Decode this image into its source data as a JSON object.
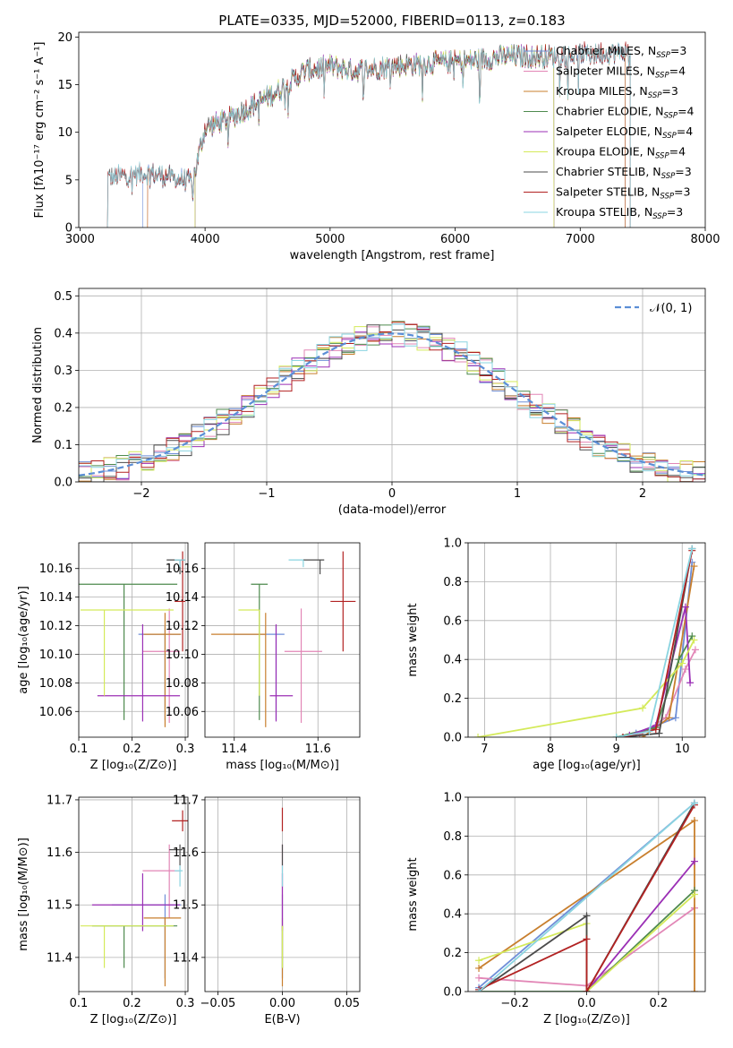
{
  "figure_title": "PLATE=0335, MJD=52000, FIBERID=0113, z=0.183",
  "colors": {
    "Chabrier MILES": "#6f8fd8",
    "Salpeter MILES": "#e286b6",
    "Kroupa MILES": "#c87f2e",
    "Chabrier ELODIE": "#4e8a4e",
    "Salpeter ELODIE": "#9b2fb5",
    "Kroupa ELODIE": "#d4ea5a",
    "Chabrier STELIB": "#4b4b4b",
    "Salpeter STELIB": "#b22222",
    "Kroupa STELIB": "#8ad4e0"
  },
  "chart_data": [
    {
      "id": "spectrum",
      "type": "line",
      "xlabel": "wavelength [Angstrom, rest frame]",
      "ylabel": "Flux [fλ10⁻¹⁷ erg cm⁻² s⁻¹ A⁻¹]",
      "xlim": [
        2990,
        8000
      ],
      "ylim": [
        0,
        20.5
      ],
      "xticks": [
        3000,
        4000,
        5000,
        6000,
        7000,
        8000
      ],
      "yticks": [
        0,
        5,
        10,
        15,
        20
      ],
      "legend_placement": "upper right",
      "legend": [
        {
          "label": "Chabrier MILES, N",
          "sub": "SSP",
          "suffix": "=3",
          "color": "#6f8fd8"
        },
        {
          "label": "Salpeter MILES, N",
          "sub": "SSP",
          "suffix": "=4",
          "color": "#e286b6"
        },
        {
          "label": "Kroupa MILES, N",
          "sub": "SSP",
          "suffix": "=3",
          "color": "#c87f2e"
        },
        {
          "label": "Chabrier ELODIE, N",
          "sub": "SSP",
          "suffix": "=4",
          "color": "#4e8a4e"
        },
        {
          "label": "Salpeter ELODIE, N",
          "sub": "SSP",
          "suffix": "=4",
          "color": "#9b2fb5"
        },
        {
          "label": "Kroupa ELODIE, N",
          "sub": "SSP",
          "suffix": "=4",
          "color": "#d4ea5a"
        },
        {
          "label": "Chabrier STELIB, N",
          "sub": "SSP",
          "suffix": "=3",
          "color": "#4b4b4b"
        },
        {
          "label": "Salpeter STELIB, N",
          "sub": "SSP",
          "suffix": "=3",
          "color": "#b22222"
        },
        {
          "label": "Kroupa STELIB, N",
          "sub": "SSP",
          "suffix": "=3",
          "color": "#8ad4e0"
        }
      ],
      "series_start_wavelength": [
        3500,
        3540,
        3540,
        3920,
        3920,
        3920,
        3220,
        3220,
        3220
      ],
      "series_end_wavelength": [
        7360,
        7360,
        7360,
        6790,
        6790,
        6790,
        7400,
        7400,
        7400
      ],
      "continuum_points": [
        [
          3220,
          5.2
        ],
        [
          3500,
          5.8
        ],
        [
          3700,
          5.4
        ],
        [
          3900,
          4.8
        ],
        [
          4000,
          10.5
        ],
        [
          4200,
          11.5
        ],
        [
          4400,
          13.0
        ],
        [
          4600,
          14.5
        ],
        [
          4800,
          16.5
        ],
        [
          5000,
          17.0
        ],
        [
          5200,
          16.5
        ],
        [
          5500,
          17.0
        ],
        [
          5800,
          17.3
        ],
        [
          6100,
          17.5
        ],
        [
          6400,
          18.0
        ],
        [
          6700,
          18.0
        ],
        [
          7000,
          18.2
        ],
        [
          7400,
          18.5
        ]
      ]
    },
    {
      "id": "residuals",
      "type": "step",
      "xlabel": "(data-model)/error",
      "ylabel": "Normed distribution",
      "xlim": [
        -2.5,
        2.5
      ],
      "ylim": [
        0,
        0.52
      ],
      "xticks": [
        -2,
        -1,
        0,
        1,
        2
      ],
      "yticks": [
        0.0,
        0.1,
        0.2,
        0.3,
        0.4,
        0.5
      ],
      "grid": true,
      "legend": [
        {
          "label": "𝒩(0, 1)",
          "style": "dashed",
          "color": "#5b8ed6"
        }
      ],
      "bin_edges_start": -2.5,
      "bin_width": 0.1,
      "reference_curve": "normal(0,1)"
    },
    {
      "id": "age_vs_Z",
      "type": "errorbar",
      "xlabel": "Z [log₁₀(Z/Z⊙)]",
      "ylabel": "age  [log₁₀(age/yr)]",
      "xlim": [
        0.1,
        0.305
      ],
      "ylim": [
        10.042,
        10.178
      ],
      "xticks": [
        0.1,
        0.2,
        0.3
      ],
      "yticks": [
        10.06,
        10.08,
        10.1,
        10.12,
        10.14,
        10.16
      ],
      "grid": true,
      "points": [
        {
          "x": 0.262,
          "y": 10.114,
          "xerr": [
            0.05,
            0.03
          ],
          "yerr": [
            0.06,
            0.006
          ],
          "color": "#6f8fd8"
        },
        {
          "x": 0.27,
          "y": 10.102,
          "xerr": [
            0.05,
            0.02
          ],
          "yerr": [
            0.05,
            0.03
          ],
          "color": "#e286b6"
        },
        {
          "x": 0.262,
          "y": 10.114,
          "xerr": [
            0.04,
            0.03
          ],
          "yerr": [
            0.065,
            0.015
          ],
          "color": "#c87f2e"
        },
        {
          "x": 0.185,
          "y": 10.149,
          "xerr": [
            0.085,
            0.1
          ],
          "yerr": [
            0.095,
            0.0
          ],
          "color": "#4e8a4e"
        },
        {
          "x": 0.22,
          "y": 10.071,
          "xerr": [
            0.085,
            0.07
          ],
          "yerr": [
            0.018,
            0.05
          ],
          "color": "#9b2fb5"
        },
        {
          "x": 0.148,
          "y": 10.131,
          "xerr": [
            0.045,
            0.13
          ],
          "yerr": [
            0.06,
            0.0
          ],
          "color": "#d4ea5a"
        },
        {
          "x": 0.29,
          "y": 10.166,
          "xerr": [
            0.025,
            0.01
          ],
          "yerr": [
            0.01,
            0.0
          ],
          "color": "#4b4b4b"
        },
        {
          "x": 0.295,
          "y": 10.137,
          "xerr": [
            0.015,
            0.005
          ],
          "yerr": [
            0.035,
            0.035
          ],
          "color": "#b22222"
        },
        {
          "x": 0.29,
          "y": 10.166,
          "xerr": [
            0.01,
            0.01
          ],
          "yerr": [
            0.005,
            0.0
          ],
          "color": "#8ad4e0"
        }
      ]
    },
    {
      "id": "age_vs_mass",
      "type": "errorbar",
      "xlabel": "mass [log₁₀(M/M⊙)]",
      "ylabel": "",
      "xlim": [
        11.33,
        11.7
      ],
      "ylim": [
        10.042,
        10.178
      ],
      "xticks": [
        11.4,
        11.6
      ],
      "yticks": [
        10.06,
        10.08,
        10.1,
        10.12,
        10.14,
        10.16
      ],
      "grid": true,
      "points": [
        {
          "x": 11.5,
          "y": 10.114,
          "xerr": [
            0.1,
            0.02
          ],
          "yerr": [
            0.06,
            0.006
          ],
          "color": "#6f8fd8"
        },
        {
          "x": 11.56,
          "y": 10.102,
          "xerr": [
            0.04,
            0.05
          ],
          "yerr": [
            0.05,
            0.03
          ],
          "color": "#e286b6"
        },
        {
          "x": 11.475,
          "y": 10.114,
          "xerr": [
            0.13,
            0.0
          ],
          "yerr": [
            0.065,
            0.015
          ],
          "color": "#c87f2e"
        },
        {
          "x": 11.46,
          "y": 10.149,
          "xerr": [
            0.02,
            0.02
          ],
          "yerr": [
            0.095,
            0.0
          ],
          "color": "#4e8a4e"
        },
        {
          "x": 11.5,
          "y": 10.071,
          "xerr": [
            0.015,
            0.04
          ],
          "yerr": [
            0.018,
            0.05
          ],
          "color": "#9b2fb5"
        },
        {
          "x": 11.46,
          "y": 10.131,
          "xerr": [
            0.05,
            0.0
          ],
          "yerr": [
            0.06,
            0.0
          ],
          "color": "#d4ea5a"
        },
        {
          "x": 11.605,
          "y": 10.166,
          "xerr": [
            0.04,
            0.01
          ],
          "yerr": [
            0.01,
            0.0
          ],
          "color": "#4b4b4b"
        },
        {
          "x": 11.66,
          "y": 10.137,
          "xerr": [
            0.03,
            0.03
          ],
          "yerr": [
            0.035,
            0.035
          ],
          "color": "#b22222"
        },
        {
          "x": 11.565,
          "y": 10.166,
          "xerr": [
            0.035,
            0.0
          ],
          "yerr": [
            0.005,
            0.0
          ],
          "color": "#8ad4e0"
        }
      ]
    },
    {
      "id": "mass_weight_vs_age",
      "type": "line",
      "xlabel": "age  [log₁₀(age/yr)]",
      "ylabel": "mass weight",
      "xlim": [
        6.75,
        10.35
      ],
      "ylim": [
        0,
        1.0
      ],
      "xticks": [
        7,
        8,
        9,
        10
      ],
      "yticks": [
        0.0,
        0.2,
        0.4,
        0.6,
        0.8,
        1.0
      ],
      "grid": true,
      "series": [
        {
          "color": "#6f8fd8",
          "x": [
            9.3,
            9.9,
            10.15
          ],
          "y": [
            0.02,
            0.1,
            0.9
          ]
        },
        {
          "color": "#e286b6",
          "x": [
            9.35,
            9.75,
            10.05,
            10.2
          ],
          "y": [
            0.01,
            0.1,
            0.35,
            0.45
          ]
        },
        {
          "color": "#c87f2e",
          "x": [
            9.4,
            9.8,
            10.18
          ],
          "y": [
            0.0,
            0.1,
            0.88
          ]
        },
        {
          "color": "#4e8a4e",
          "x": [
            9.0,
            9.6,
            9.95,
            10.15
          ],
          "y": [
            0.0,
            0.05,
            0.4,
            0.52
          ]
        },
        {
          "color": "#9b2fb5",
          "x": [
            9.2,
            9.6,
            10.05,
            10.12
          ],
          "y": [
            0.01,
            0.06,
            0.67,
            0.28
          ]
        },
        {
          "color": "#d4ea5a",
          "x": [
            6.9,
            9.4,
            10.0,
            10.18
          ],
          "y": [
            0.0,
            0.15,
            0.38,
            0.5
          ]
        },
        {
          "color": "#4b4b4b",
          "x": [
            9.1,
            9.65,
            10.15
          ],
          "y": [
            0.0,
            0.02,
            0.97
          ]
        },
        {
          "color": "#b22222",
          "x": [
            9.1,
            9.6,
            10.15
          ],
          "y": [
            0.0,
            0.04,
            0.96
          ]
        },
        {
          "color": "#8ad4e0",
          "x": [
            9.0,
            9.5,
            10.15
          ],
          "y": [
            0.0,
            0.03,
            0.97
          ]
        }
      ]
    },
    {
      "id": "mass_vs_Z",
      "type": "errorbar",
      "xlabel": "Z [log₁₀(Z/Z⊙)]",
      "ylabel": "mass [log₁₀(M/M⊙)]",
      "xlim": [
        0.1,
        0.305
      ],
      "ylim": [
        11.335,
        11.705
      ],
      "xticks": [
        0.1,
        0.2,
        0.3
      ],
      "yticks": [
        11.4,
        11.5,
        11.6,
        11.7
      ],
      "grid": true,
      "points": [
        {
          "x": 0.262,
          "y": 11.5,
          "xerr": [
            0.1,
            0.03
          ],
          "yerr": [
            0.14,
            0.02
          ],
          "color": "#6f8fd8"
        },
        {
          "x": 0.27,
          "y": 11.565,
          "xerr": [
            0.05,
            0.02
          ],
          "yerr": [
            0.09,
            0.05
          ],
          "color": "#e286b6"
        },
        {
          "x": 0.262,
          "y": 11.475,
          "xerr": [
            0.04,
            0.03
          ],
          "yerr": [
            0.13,
            0.0
          ],
          "color": "#c87f2e"
        },
        {
          "x": 0.185,
          "y": 11.46,
          "xerr": [
            0.06,
            0.1
          ],
          "yerr": [
            0.08,
            0.0
          ],
          "color": "#4e8a4e"
        },
        {
          "x": 0.22,
          "y": 11.5,
          "xerr": [
            0.095,
            0.07
          ],
          "yerr": [
            0.05,
            0.06
          ],
          "color": "#9b2fb5"
        },
        {
          "x": 0.148,
          "y": 11.46,
          "xerr": [
            0.045,
            0.13
          ],
          "yerr": [
            0.08,
            0.0
          ],
          "color": "#d4ea5a"
        },
        {
          "x": 0.29,
          "y": 11.605,
          "xerr": [
            0.02,
            0.005
          ],
          "yerr": [
            0.03,
            0.01
          ],
          "color": "#4b4b4b"
        },
        {
          "x": 0.295,
          "y": 11.66,
          "xerr": [
            0.02,
            0.01
          ],
          "yerr": [
            0.02,
            0.02
          ],
          "color": "#b22222"
        },
        {
          "x": 0.29,
          "y": 11.565,
          "xerr": [
            0.01,
            0.005
          ],
          "yerr": [
            0.03,
            0.01
          ],
          "color": "#8ad4e0"
        }
      ]
    },
    {
      "id": "mass_vs_EBV",
      "type": "errorbar",
      "xlabel": "E(B-V)",
      "ylabel": "",
      "xlim": [
        -0.06,
        0.06
      ],
      "ylim": [
        11.335,
        11.705
      ],
      "xticks": [
        -0.05,
        0.0,
        0.05
      ],
      "yticks": [
        11.4,
        11.5,
        11.6,
        11.7
      ],
      "grid": true,
      "points": [
        {
          "x": 0.0,
          "y": 11.5,
          "xerr": [
            0,
            0
          ],
          "yerr": [
            0.14,
            0.02
          ],
          "color": "#6f8fd8"
        },
        {
          "x": 0.0,
          "y": 11.565,
          "xerr": [
            0,
            0
          ],
          "yerr": [
            0.09,
            0.05
          ],
          "color": "#e286b6"
        },
        {
          "x": 0.0,
          "y": 11.475,
          "xerr": [
            0,
            0
          ],
          "yerr": [
            0.13,
            0.0
          ],
          "color": "#c87f2e"
        },
        {
          "x": 0.0,
          "y": 11.46,
          "xerr": [
            0,
            0
          ],
          "yerr": [
            0.08,
            0.0
          ],
          "color": "#4e8a4e"
        },
        {
          "x": 0.0,
          "y": 11.5,
          "xerr": [
            0,
            0
          ],
          "yerr": [
            0.05,
            0.06
          ],
          "color": "#9b2fb5"
        },
        {
          "x": 0.0,
          "y": 11.46,
          "xerr": [
            0,
            0
          ],
          "yerr": [
            0.08,
            0.0
          ],
          "color": "#d4ea5a"
        },
        {
          "x": 0.0,
          "y": 11.605,
          "xerr": [
            0,
            0
          ],
          "yerr": [
            0.03,
            0.01
          ],
          "color": "#4b4b4b"
        },
        {
          "x": 0.0,
          "y": 11.66,
          "xerr": [
            0,
            0
          ],
          "yerr": [
            0.02,
            0.025
          ],
          "color": "#b22222"
        },
        {
          "x": 0.0,
          "y": 11.565,
          "xerr": [
            0,
            0
          ],
          "yerr": [
            0.03,
            0.01
          ],
          "color": "#8ad4e0"
        }
      ]
    },
    {
      "id": "mass_weight_vs_Z",
      "type": "line",
      "xlabel": "Z [log₁₀(Z/Z⊙)]",
      "ylabel": "mass weight",
      "xlim": [
        -0.33,
        0.33
      ],
      "ylim": [
        0,
        1.0
      ],
      "xticks": [
        -0.2,
        0.0,
        0.2
      ],
      "yticks": [
        0.0,
        0.2,
        0.4,
        0.6,
        0.8,
        1.0
      ],
      "grid": true,
      "series": [
        {
          "color": "#6f8fd8",
          "x": [
            -0.3,
            0.3
          ],
          "y": [
            0.02,
            0.97
          ]
        },
        {
          "color": "#e286b6",
          "x": [
            -0.3,
            0.0,
            0.3,
            0.3
          ],
          "y": [
            0.07,
            0.03,
            0.43,
            0.43
          ]
        },
        {
          "color": "#c87f2e",
          "x": [
            -0.3,
            0.3,
            0.3
          ],
          "y": [
            0.12,
            0.88,
            0.0
          ]
        },
        {
          "color": "#4e8a4e",
          "x": [
            -0.3,
            0.0,
            0.0,
            0.3
          ],
          "y": [
            0.0,
            0.0,
            0.0,
            0.52
          ]
        },
        {
          "color": "#9b2fb5",
          "x": [
            0.0,
            0.3
          ],
          "y": [
            0.0,
            0.67
          ]
        },
        {
          "color": "#d4ea5a",
          "x": [
            -0.3,
            0.0,
            0.0,
            0.3
          ],
          "y": [
            0.16,
            0.35,
            0.0,
            0.5
          ]
        },
        {
          "color": "#4b4b4b",
          "x": [
            -0.3,
            0.0,
            0.0,
            0.3
          ],
          "y": [
            0.0,
            0.39,
            0.0,
            0.97
          ]
        },
        {
          "color": "#b22222",
          "x": [
            -0.3,
            0.0,
            0.0,
            0.3
          ],
          "y": [
            0.01,
            0.27,
            0.0,
            0.96
          ]
        },
        {
          "color": "#8ad4e0",
          "x": [
            -0.3,
            0.3
          ],
          "y": [
            0.0,
            0.97
          ]
        }
      ]
    }
  ]
}
